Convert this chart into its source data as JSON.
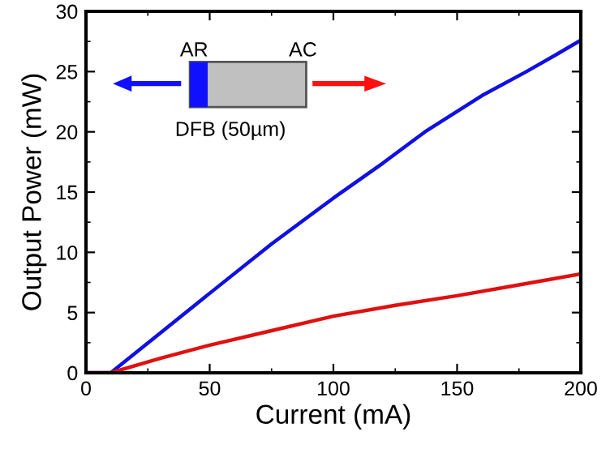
{
  "chart_data": {
    "type": "line",
    "xlabel": "Current (mA)",
    "ylabel": "Output Power (mW)",
    "xlim": [
      0,
      200
    ],
    "ylim": [
      0,
      30
    ],
    "xticks": [
      0,
      50,
      100,
      150,
      200
    ],
    "yticks": [
      0,
      5,
      10,
      15,
      20,
      25,
      30
    ],
    "grid": false,
    "legend": false,
    "annotations": [
      "AR",
      "AC",
      "DFB (50µm)"
    ],
    "series": [
      {
        "color": "#1010e0",
        "x": [
          0,
          5,
          10,
          30,
          50,
          75,
          100,
          120,
          137,
          160,
          178,
          190,
          200
        ],
        "values": [
          0,
          0,
          0,
          3.3,
          6.6,
          10.7,
          14.5,
          17.4,
          20,
          23,
          25,
          26.4,
          27.6
        ]
      },
      {
        "color": "#e01010",
        "x": [
          0,
          5,
          10,
          30,
          50,
          75,
          100,
          125,
          150,
          175,
          200
        ],
        "values": [
          0,
          0,
          0,
          1.2,
          2.3,
          3.5,
          4.7,
          5.6,
          6.4,
          7.3,
          8.2
        ]
      }
    ]
  }
}
